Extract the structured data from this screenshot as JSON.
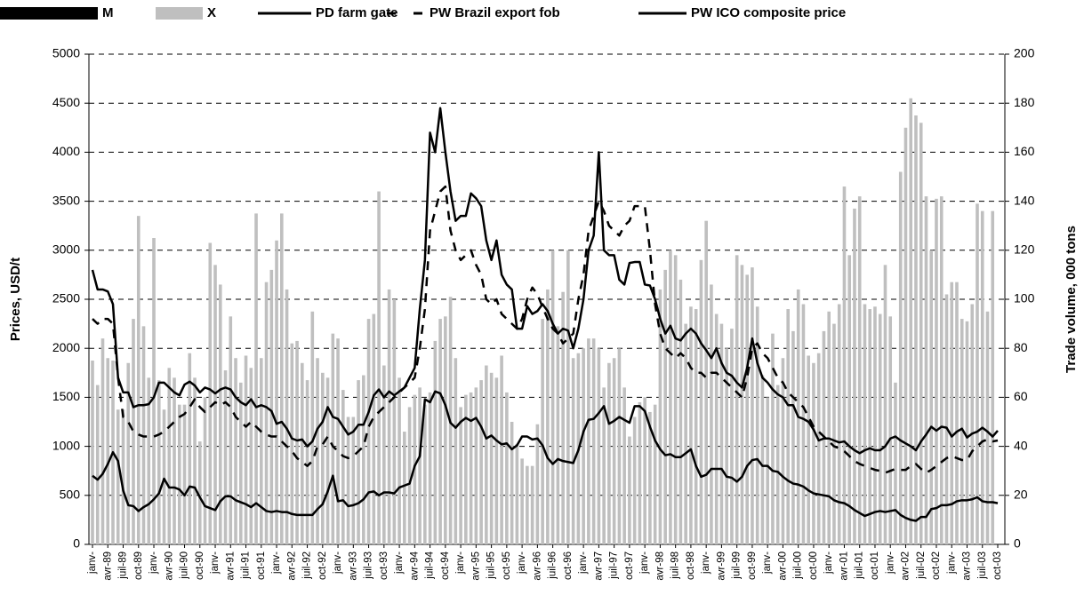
{
  "chart_data": {
    "type": "combo",
    "y_label": "Prices, USD/t",
    "y2_label": "Trade volume, 000 tons",
    "ylim": [
      0,
      5000
    ],
    "yticks": [
      0,
      500,
      1000,
      1500,
      2000,
      2500,
      3000,
      3500,
      4000,
      4500,
      5000
    ],
    "y2lim": [
      0,
      200
    ],
    "y2ticks": [
      0,
      20,
      40,
      60,
      80,
      100,
      120,
      140,
      160,
      180,
      200
    ],
    "grid": true,
    "legend": "top",
    "categories": [
      "janv-",
      null,
      null,
      "avr-89",
      null,
      null,
      "juil-89",
      null,
      null,
      "oct-89",
      null,
      null,
      "janv-",
      null,
      null,
      "avr-90",
      null,
      null,
      "juil-90",
      null,
      null,
      "oct-90",
      null,
      null,
      "janv-",
      null,
      null,
      "avr-91",
      null,
      null,
      "juil-91",
      null,
      null,
      "oct-91",
      null,
      null,
      "janv-",
      null,
      null,
      "avr-92",
      null,
      null,
      "juil-92",
      null,
      null,
      "oct-92",
      null,
      null,
      "janv-",
      null,
      null,
      "avr-93",
      null,
      null,
      "juil-93",
      null,
      null,
      "oct-93",
      null,
      null,
      "janv-",
      null,
      null,
      "avr-94",
      null,
      null,
      "juil-94",
      null,
      null,
      "oct-94",
      null,
      null,
      "janv-",
      null,
      null,
      "avr-95",
      null,
      null,
      "juil-95",
      null,
      null,
      "oct-95",
      null,
      null,
      "janv-",
      null,
      null,
      "avr-96",
      null,
      null,
      "juil-96",
      null,
      null,
      "oct-96",
      null,
      null,
      "janv-",
      null,
      null,
      "avr-97",
      null,
      null,
      "juil-97",
      null,
      null,
      "oct-97",
      null,
      null,
      "janv-",
      null,
      null,
      "avr-98",
      null,
      null,
      "juil-98",
      null,
      null,
      "oct-98",
      null,
      null,
      "janv-",
      null,
      null,
      "avr-99",
      null,
      null,
      "juil-99",
      null,
      null,
      "oct-99",
      null,
      null,
      "janv-",
      null,
      null,
      "avr-00",
      null,
      null,
      "juil-00",
      null,
      null,
      "oct-00",
      null,
      null,
      "janv-",
      null,
      null,
      "avr-01",
      null,
      null,
      "juil-01",
      null,
      null,
      "oct-01",
      null,
      null,
      "janv-",
      null,
      null,
      "avr-02",
      null,
      null,
      "juil-02",
      null,
      null,
      "oct-02",
      null,
      null,
      "janv-",
      null,
      null,
      "avr-03",
      null,
      null,
      "juil-03",
      null,
      null,
      "oct-03"
    ],
    "series": [
      {
        "name": "M",
        "type": "bar",
        "axis": "y2",
        "color": "#000000",
        "values": [
          0,
          0,
          0,
          0,
          0,
          0,
          0,
          0,
          0,
          0,
          0,
          0,
          0,
          0,
          0,
          0,
          0,
          0,
          0,
          0,
          0,
          0,
          0,
          0,
          0,
          0,
          0,
          0,
          0,
          0,
          0,
          0,
          0,
          0,
          0,
          0,
          0,
          0,
          0,
          0,
          0,
          0,
          0,
          0,
          0,
          0,
          0,
          0,
          0,
          0,
          0,
          0,
          0,
          0,
          0,
          0,
          0,
          0,
          0,
          0,
          0,
          0,
          0,
          0,
          0,
          0,
          0,
          0,
          0,
          0,
          0,
          0,
          0,
          0,
          0,
          0,
          0,
          0,
          0,
          0,
          0,
          0,
          0,
          0,
          0,
          0,
          0,
          0,
          0,
          0,
          0,
          0,
          0,
          0,
          0,
          0,
          0,
          0,
          0,
          0,
          0,
          0,
          0,
          0,
          0,
          0,
          0,
          0,
          0,
          0,
          0,
          0,
          0,
          0,
          0,
          0,
          0,
          0,
          0,
          0,
          0,
          0,
          0,
          0,
          0,
          0,
          0,
          0,
          0,
          0,
          0,
          0,
          0,
          0,
          0,
          0,
          0,
          0,
          0,
          0,
          0,
          0,
          0,
          0,
          0,
          0,
          0,
          0,
          0,
          0,
          0,
          0,
          0,
          0,
          0,
          0,
          0,
          0,
          0,
          0,
          0,
          0,
          0,
          0,
          0,
          0,
          0,
          0,
          0,
          0,
          0,
          0,
          0,
          0,
          0,
          0,
          0,
          0
        ]
      },
      {
        "name": "X",
        "type": "bar",
        "axis": "y2",
        "color": "#bfbfbf",
        "values": [
          75,
          65,
          84,
          76,
          75,
          55,
          55,
          74,
          92,
          134,
          89,
          68,
          125,
          67,
          55,
          72,
          68,
          57,
          57,
          78,
          68,
          42,
          60,
          123,
          114,
          106,
          71,
          93,
          76,
          66,
          77,
          72,
          135,
          76,
          107,
          112,
          124,
          135,
          104,
          82,
          83,
          74,
          67,
          95,
          76,
          70,
          68,
          86,
          84,
          63,
          52,
          52,
          67,
          69,
          92,
          94,
          144,
          73,
          104,
          100,
          68,
          46,
          56,
          61,
          64,
          57,
          62,
          83,
          92,
          93,
          101,
          76,
          56,
          61,
          62,
          64,
          67,
          73,
          70,
          68,
          77,
          62,
          50,
          41,
          35,
          32,
          32,
          49,
          92,
          104,
          120,
          89,
          103,
          120,
          76,
          78,
          80,
          84,
          84,
          80,
          64,
          74,
          76,
          80,
          64,
          44,
          52,
          58,
          60,
          54,
          57,
          104,
          112,
          120,
          118,
          108,
          90,
          97,
          96,
          116,
          132,
          106,
          94,
          90,
          80,
          88,
          118,
          114,
          110,
          113,
          97,
          69,
          60,
          86,
          65,
          76,
          96,
          87,
          104,
          98,
          77,
          74,
          78,
          87,
          95,
          90,
          98,
          146,
          118,
          137,
          142,
          98,
          96,
          97,
          94,
          114,
          93,
          66,
          152,
          170,
          182,
          175,
          172,
          142,
          120,
          141,
          142,
          102,
          107,
          107,
          92,
          91,
          98,
          139,
          136,
          95,
          136,
          null
        ]
      },
      {
        "name": "PD farm gate",
        "type": "line",
        "dash": "solid",
        "color": "#000000",
        "values": [
          700,
          660,
          720,
          820,
          940,
          850,
          550,
          400,
          390,
          340,
          380,
          410,
          460,
          520,
          670,
          580,
          580,
          560,
          500,
          590,
          580,
          480,
          390,
          370,
          350,
          440,
          490,
          490,
          450,
          430,
          410,
          380,
          420,
          380,
          340,
          330,
          340,
          330,
          330,
          310,
          300,
          300,
          300,
          300,
          360,
          410,
          540,
          700,
          440,
          450,
          390,
          400,
          420,
          460,
          530,
          540,
          500,
          530,
          530,
          520,
          580,
          600,
          620,
          800,
          900,
          1480,
          1450,
          1560,
          1540,
          1420,
          1240,
          1190,
          1250,
          1290,
          1260,
          1290,
          1200,
          1080,
          1110,
          1060,
          1020,
          1030,
          970,
          1010,
          1100,
          1100,
          1070,
          1080,
          1010,
          880,
          820,
          870,
          850,
          840,
          830,
          960,
          1150,
          1270,
          1280,
          1340,
          1410,
          1230,
          1260,
          1300,
          1270,
          1240,
          1410,
          1410,
          1360,
          1200,
          1060,
          970,
          910,
          920,
          890,
          890,
          930,
          970,
          800,
          690,
          710,
          770,
          770,
          770,
          690,
          680,
          640,
          690,
          800,
          860,
          870,
          800,
          800,
          750,
          740,
          690,
          650,
          620,
          610,
          590,
          550,
          520,
          510,
          500,
          490,
          450,
          430,
          420,
          390,
          350,
          320,
          290,
          310,
          330,
          340,
          330,
          340,
          350,
          300,
          270,
          250,
          240,
          280,
          280,
          360,
          370,
          400,
          400,
          410,
          440,
          450,
          450,
          460,
          480,
          440,
          430,
          430,
          420
        ]
      },
      {
        "name": "PW Brazil export fob",
        "type": "line",
        "dash": "dashed",
        "color": "#000000",
        "values": [
          2300,
          2250,
          2300,
          2300,
          2250,
          1700,
          1300,
          1250,
          1150,
          1120,
          1100,
          1100,
          1100,
          1120,
          1150,
          1200,
          1250,
          1300,
          1330,
          1400,
          1480,
          1400,
          1350,
          1400,
          1450,
          1420,
          1450,
          1400,
          1300,
          1250,
          1200,
          1250,
          1200,
          1150,
          1120,
          1100,
          1100,
          1050,
          1000,
          950,
          880,
          840,
          800,
          850,
          1000,
          1020,
          1100,
          1000,
          950,
          900,
          880,
          900,
          950,
          1000,
          1200,
          1300,
          1350,
          1400,
          1450,
          1500,
          1550,
          1600,
          1650,
          1700,
          2000,
          2400,
          3200,
          3400,
          3600,
          3650,
          3200,
          3000,
          2900,
          2950,
          3000,
          2850,
          2750,
          2500,
          2450,
          2500,
          2350,
          2300,
          2250,
          2200,
          2300,
          2500,
          2620,
          2550,
          2420,
          2300,
          2200,
          2150,
          2050,
          2100,
          2150,
          2500,
          2750,
          3200,
          3350,
          3500,
          3400,
          3250,
          3200,
          3150,
          3250,
          3300,
          3450,
          3450,
          3450,
          3000,
          2450,
          2150,
          2000,
          1950,
          1900,
          1950,
          1900,
          1800,
          1750,
          1750,
          1700,
          1750,
          1750,
          1700,
          1650,
          1600,
          1550,
          1500,
          1700,
          2000,
          2050,
          1950,
          1900,
          1800,
          1700,
          1650,
          1550,
          1500,
          1450,
          1400,
          1300,
          1200,
          1150,
          1100,
          1050,
          1000,
          980,
          950,
          900,
          850,
          820,
          800,
          780,
          760,
          750,
          730,
          750,
          770,
          760,
          760,
          800,
          820,
          770,
          730,
          760,
          800,
          840,
          880,
          900,
          880,
          860,
          860,
          950,
          1000,
          1050,
          1070,
          1050,
          1060
        ]
      },
      {
        "name": "PW ICO composite price",
        "type": "line",
        "dash": "solid",
        "color": "#000000",
        "values": [
          2800,
          2600,
          2600,
          2580,
          2450,
          1700,
          1550,
          1550,
          1400,
          1420,
          1420,
          1430,
          1500,
          1650,
          1650,
          1600,
          1550,
          1520,
          1630,
          1660,
          1620,
          1550,
          1600,
          1580,
          1540,
          1580,
          1600,
          1580,
          1500,
          1450,
          1420,
          1480,
          1400,
          1420,
          1400,
          1360,
          1230,
          1250,
          1180,
          1080,
          1060,
          1070,
          1000,
          1050,
          1180,
          1250,
          1400,
          1300,
          1280,
          1200,
          1120,
          1150,
          1220,
          1220,
          1350,
          1520,
          1580,
          1500,
          1560,
          1520,
          1560,
          1600,
          1700,
          1800,
          2400,
          2900,
          4200,
          4000,
          4450,
          4000,
          3600,
          3300,
          3350,
          3350,
          3580,
          3530,
          3450,
          3100,
          2900,
          3100,
          2750,
          2650,
          2600,
          2200,
          2200,
          2430,
          2350,
          2380,
          2450,
          2380,
          2250,
          2150,
          2200,
          2180,
          2000,
          2200,
          2500,
          3000,
          3150,
          4000,
          3000,
          2950,
          2950,
          2700,
          2650,
          2870,
          2880,
          2880,
          2650,
          2640,
          2500,
          2300,
          2150,
          2230,
          2100,
          2080,
          2150,
          2200,
          2150,
          2050,
          1980,
          1900,
          2000,
          1850,
          1750,
          1720,
          1650,
          1600,
          1800,
          2100,
          1850,
          1700,
          1650,
          1580,
          1530,
          1500,
          1420,
          1420,
          1300,
          1280,
          1250,
          1170,
          1060,
          1080,
          1080,
          1060,
          1040,
          1050,
          1000,
          960,
          930,
          960,
          980,
          960,
          960,
          1000,
          1080,
          1100,
          1060,
          1030,
          1000,
          960,
          1050,
          1120,
          1200,
          1160,
          1200,
          1190,
          1100,
          1150,
          1180,
          1090,
          1130,
          1150,
          1190,
          1150,
          1100,
          1160
        ]
      }
    ]
  }
}
